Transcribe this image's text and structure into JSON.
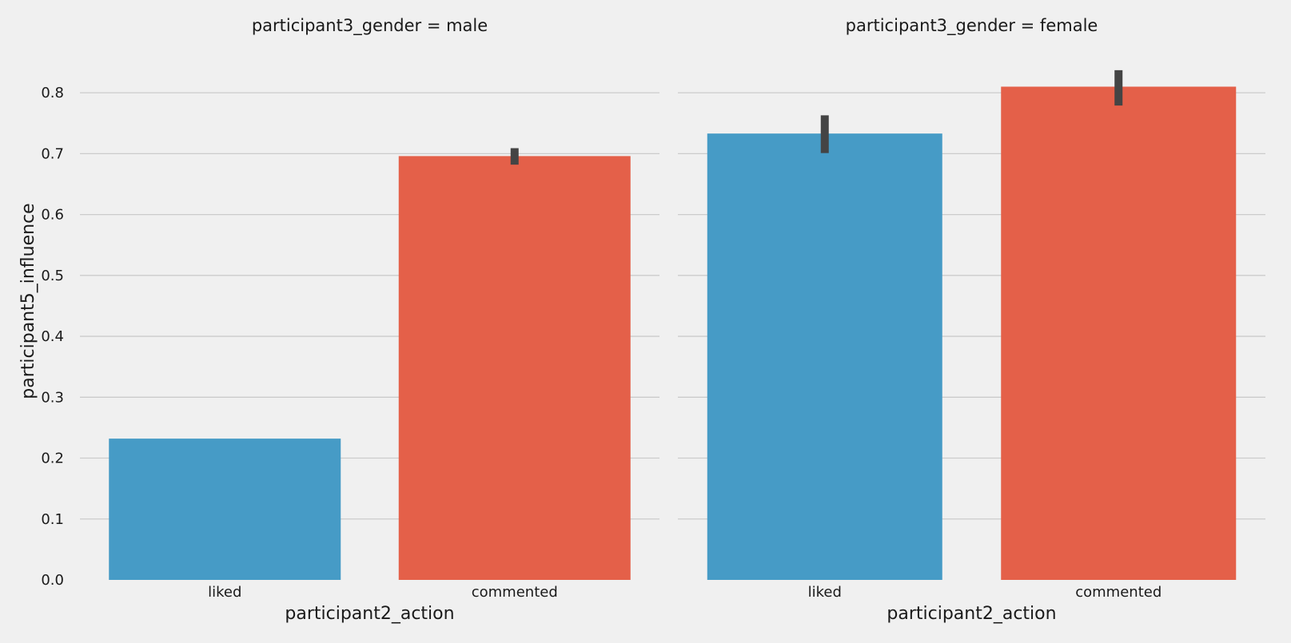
{
  "chart_data": {
    "type": "bar",
    "facet_variable": "participant3_gender",
    "xlabel": "participant2_action",
    "ylabel": "participant5_influence",
    "categories": [
      "liked",
      "commented"
    ],
    "ylim": [
      0,
      0.85
    ],
    "yticks": [
      0.0,
      0.1,
      0.2,
      0.3,
      0.4,
      0.5,
      0.6,
      0.7,
      0.8
    ],
    "ytick_labels": [
      "0.0",
      "0.1",
      "0.2",
      "0.3",
      "0.4",
      "0.5",
      "0.6",
      "0.7",
      "0.8"
    ],
    "grid": true,
    "sharey": true,
    "colors": {
      "liked": "#469bc6",
      "commented": "#e46049",
      "errorbar": "#444444",
      "grid": "#cbcbcb",
      "background": "#f0f0f0"
    },
    "panels": [
      {
        "title": "participant3_gender = male",
        "values": [
          0.232,
          0.696
        ],
        "ci": [
          [
            0.232,
            0.232
          ],
          [
            0.682,
            0.709
          ]
        ]
      },
      {
        "title": "participant3_gender = female",
        "values": [
          0.733,
          0.81
        ],
        "ci": [
          [
            0.701,
            0.763
          ],
          [
            0.779,
            0.837
          ]
        ]
      }
    ]
  }
}
